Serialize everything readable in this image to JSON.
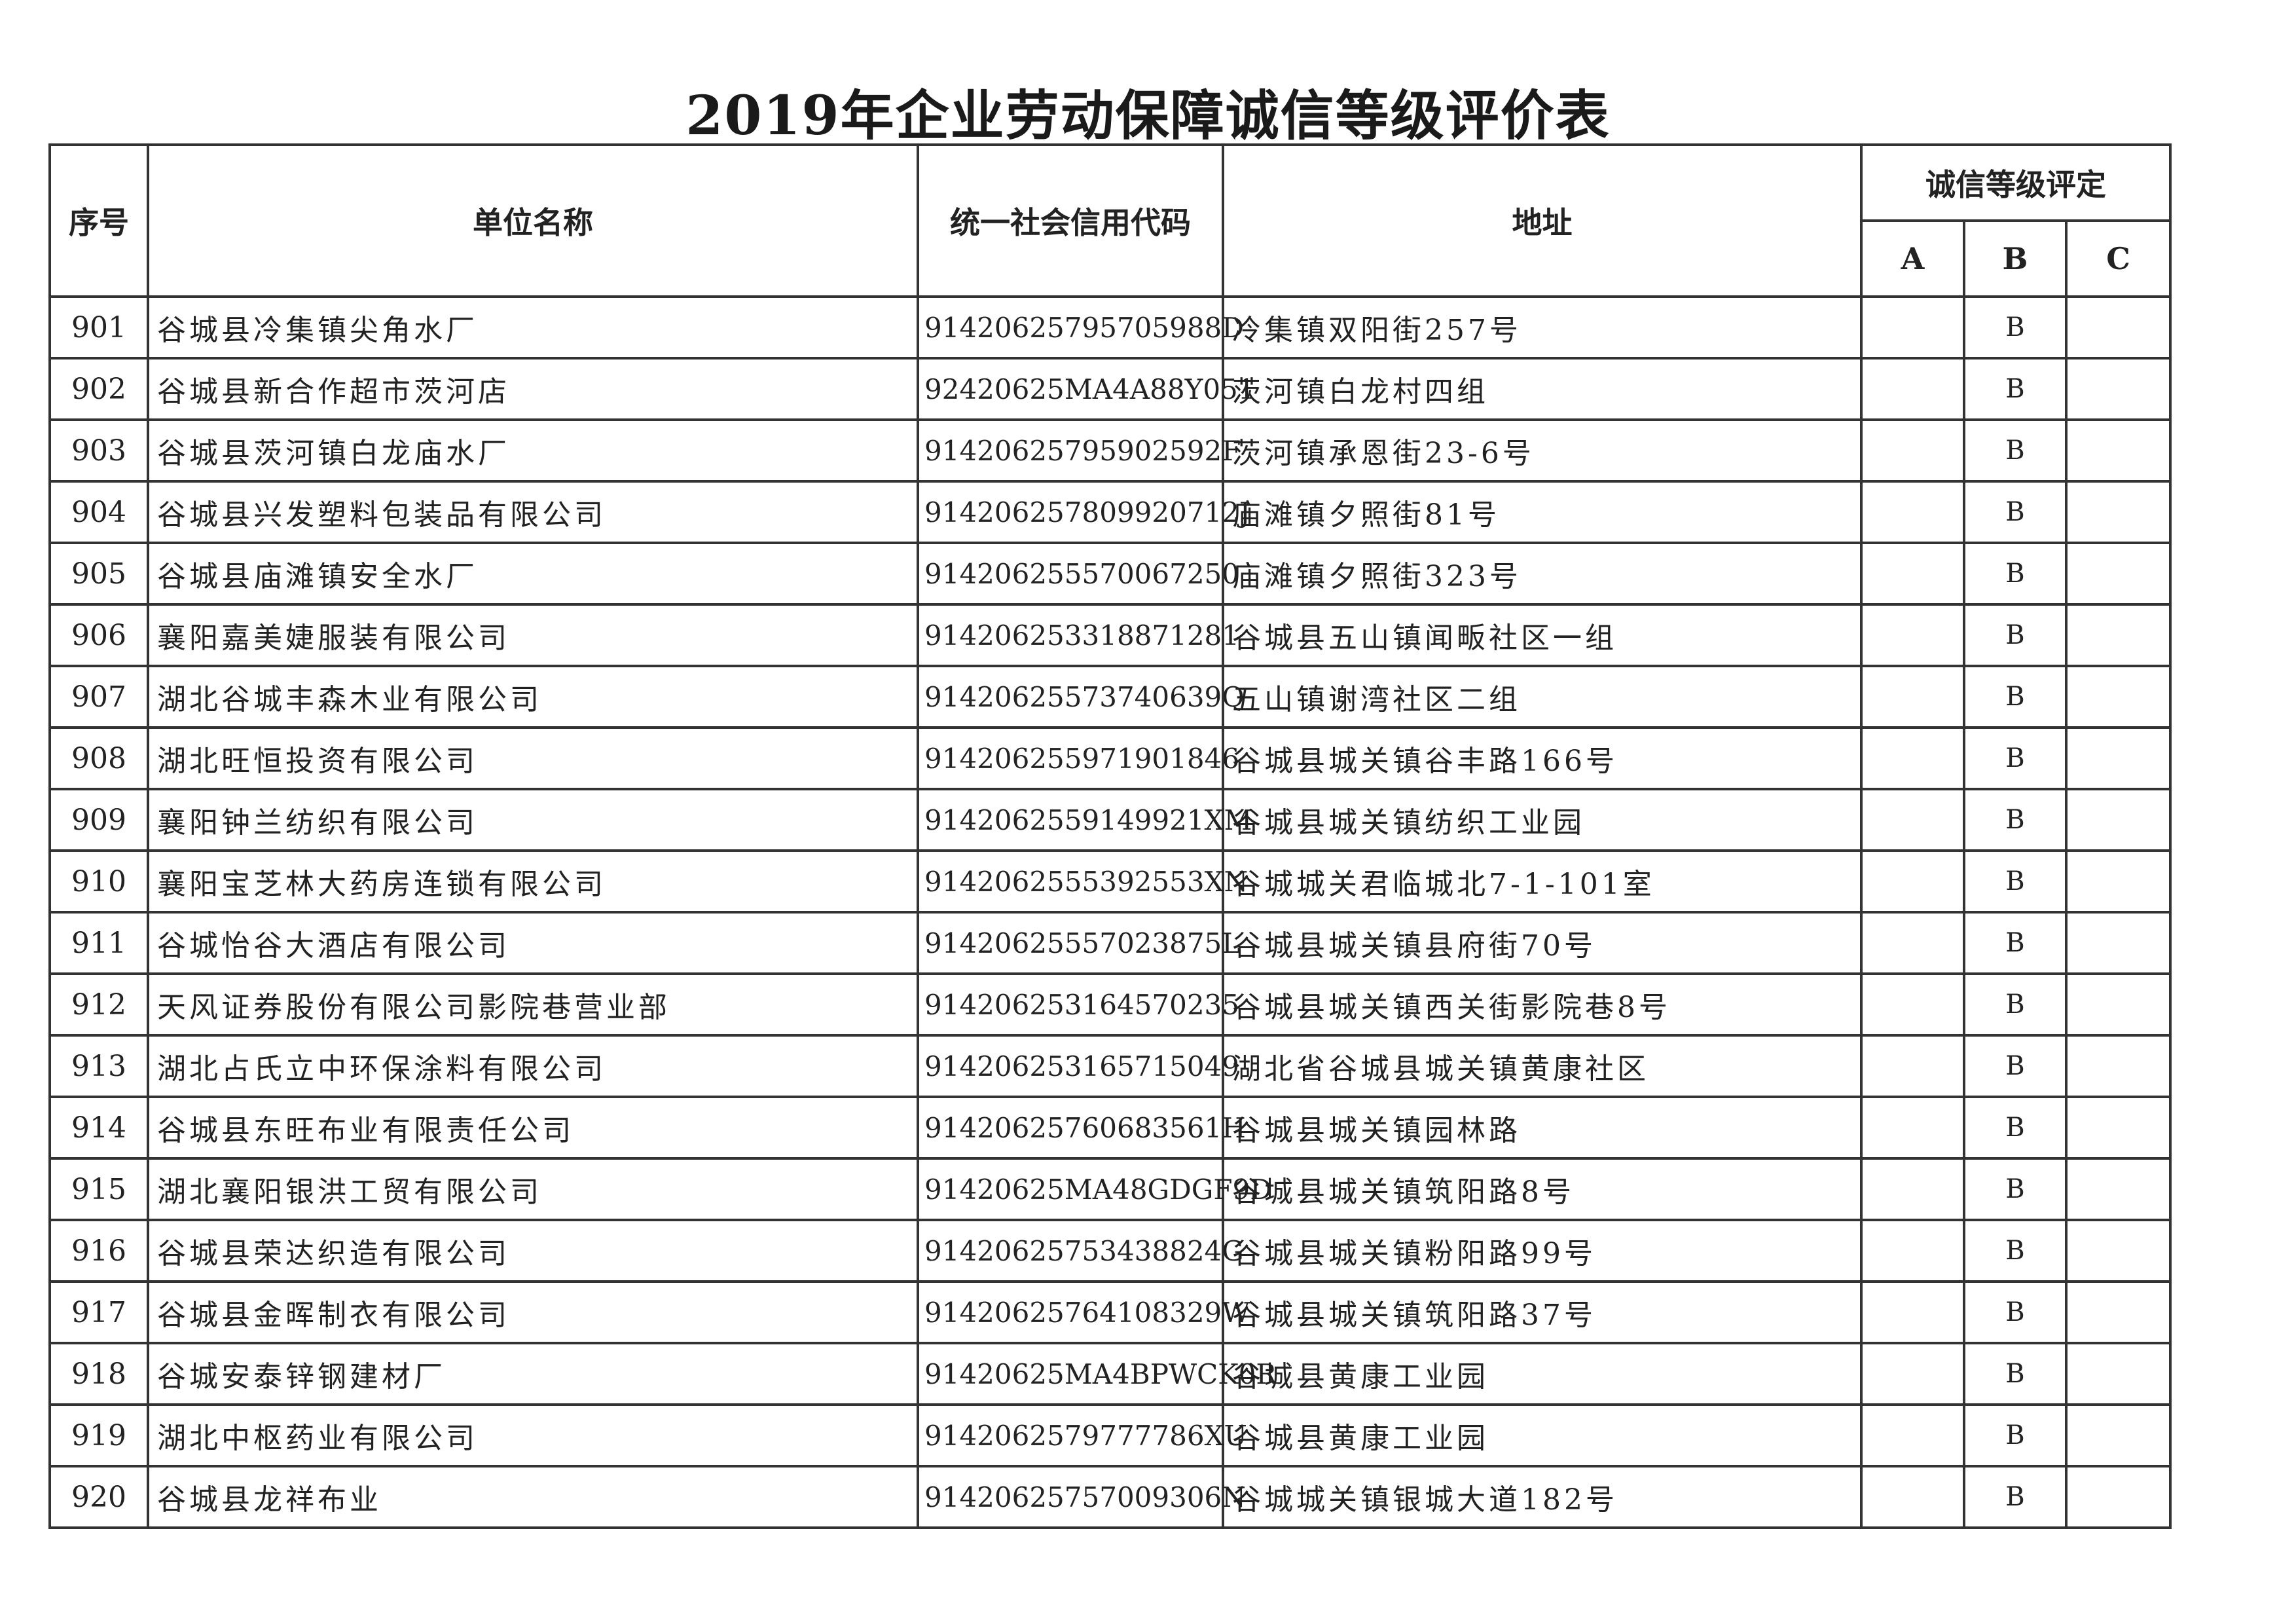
{
  "title": "2019年企业劳动保障诚信等级评价表",
  "headers": {
    "no": "序号",
    "name": "单位名称",
    "code": "统一社会信用代码",
    "address": "地址",
    "rating": "诚信等级评定",
    "a": "A",
    "b": "B",
    "c": "C"
  },
  "rows": [
    {
      "no": "901",
      "name": "谷城县冷集镇尖角水厂",
      "code": "91420625795705988D",
      "address": "冷集镇双阳街257号",
      "a": "",
      "b": "B",
      "c": ""
    },
    {
      "no": "902",
      "name": "谷城县新合作超市茨河店",
      "code": "92420625MA4A88Y051",
      "address": "茨河镇白龙村四组",
      "a": "",
      "b": "B",
      "c": ""
    },
    {
      "no": "903",
      "name": "谷城县茨河镇白龙庙水厂",
      "code": "91420625795902592F",
      "address": "茨河镇承恩街23-6号",
      "a": "",
      "b": "B",
      "c": ""
    },
    {
      "no": "904",
      "name": "谷城县兴发塑料包装品有限公司",
      "code": "914206257809920712J",
      "address": "庙滩镇夕照街81号",
      "a": "",
      "b": "B",
      "c": ""
    },
    {
      "no": "905",
      "name": "谷城县庙滩镇安全水厂",
      "code": "914206255570067250",
      "address": "庙滩镇夕照街323号",
      "a": "",
      "b": "B",
      "c": ""
    },
    {
      "no": "906",
      "name": "襄阳嘉美婕服装有限公司",
      "code": "914206253318871281",
      "address": "谷城县五山镇闻畈社区一组",
      "a": "",
      "b": "B",
      "c": ""
    },
    {
      "no": "907",
      "name": "湖北谷城丰森木业有限公司",
      "code": "91420625573740639Q",
      "address": "五山镇谢湾社区二组",
      "a": "",
      "b": "B",
      "c": ""
    },
    {
      "no": "908",
      "name": "湖北旺恒投资有限公司",
      "code": "914206255971901846",
      "address": "谷城县城关镇谷丰路166号",
      "a": "",
      "b": "B",
      "c": ""
    },
    {
      "no": "909",
      "name": "襄阳钟兰纺织有限公司",
      "code": "9142062559149921XM",
      "address": "谷城县城关镇纺织工业园",
      "a": "",
      "b": "B",
      "c": ""
    },
    {
      "no": "910",
      "name": "襄阳宝芝林大药房连锁有限公司",
      "code": "9142062555392553XN",
      "address": "谷城城关君临城北7-1-101室",
      "a": "",
      "b": "B",
      "c": ""
    },
    {
      "no": "911",
      "name": "谷城怡谷大酒店有限公司",
      "code": "91420625557023875L",
      "address": "谷城县城关镇县府街70号",
      "a": "",
      "b": "B",
      "c": ""
    },
    {
      "no": "912",
      "name": "天风证券股份有限公司影院巷营业部",
      "code": "914206253164570235",
      "address": "谷城县城关镇西关街影院巷8号",
      "a": "",
      "b": "B",
      "c": ""
    },
    {
      "no": "913",
      "name": "湖北占氏立中环保涂料有限公司",
      "code": "914206253165715049",
      "address": "湖北省谷城县城关镇黄康社区",
      "a": "",
      "b": "B",
      "c": ""
    },
    {
      "no": "914",
      "name": "谷城县东旺布业有限责任公司",
      "code": "91420625760683561H",
      "address": "谷城县城关镇园林路",
      "a": "",
      "b": "B",
      "c": ""
    },
    {
      "no": "915",
      "name": "湖北襄阳银洪工贸有限公司",
      "code": "91420625MA48GDGF9D",
      "address": "谷城县城关镇筑阳路8号",
      "a": "",
      "b": "B",
      "c": ""
    },
    {
      "no": "916",
      "name": "谷城县荣达织造有限公司",
      "code": "91420625753438824G",
      "address": "谷城县城关镇粉阳路99号",
      "a": "",
      "b": "B",
      "c": ""
    },
    {
      "no": "917",
      "name": "谷城县金晖制衣有限公司",
      "code": "91420625764108329W",
      "address": "谷城县城关镇筑阳路37号",
      "a": "",
      "b": "B",
      "c": ""
    },
    {
      "no": "918",
      "name": "谷城安泰锌钢建材厂",
      "code": "91420625MA4BPWCK0R",
      "address": "谷城县黄康工业园",
      "a": "",
      "b": "B",
      "c": ""
    },
    {
      "no": "919",
      "name": "湖北中枢药业有限公司",
      "code": "9142062579777786XU",
      "address": "谷城县黄康工业园",
      "a": "",
      "b": "B",
      "c": ""
    },
    {
      "no": "920",
      "name": "谷城县龙祥布业",
      "code": "91420625757009306N",
      "address": "谷城城关镇银城大道182号",
      "a": "",
      "b": "B",
      "c": ""
    }
  ]
}
